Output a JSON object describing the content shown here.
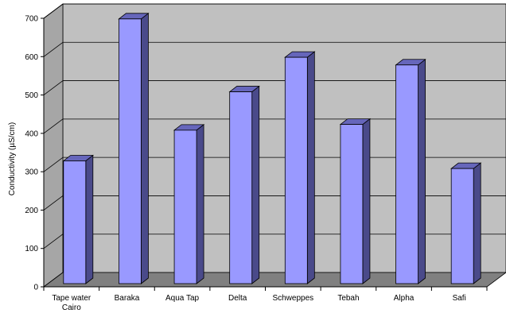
{
  "chart_data": {
    "type": "bar",
    "title": "",
    "xlabel": "",
    "ylabel": "Conductivity (µS/cm)",
    "categories": [
      [
        "Tape water",
        "Cairo"
      ],
      [
        "Baraka"
      ],
      [
        "Aqua Tap"
      ],
      [
        "Delta"
      ],
      [
        "Schweppes"
      ],
      [
        "Tebah"
      ],
      [
        "Alpha"
      ],
      [
        "Safi"
      ]
    ],
    "values": [
      320,
      690,
      400,
      500,
      590,
      415,
      570,
      300
    ],
    "ylim": [
      0,
      700
    ],
    "yticks": [
      0,
      100,
      200,
      300,
      400,
      500,
      600,
      700
    ],
    "grid": true,
    "legend": "none",
    "style": "3d",
    "colors": {
      "bar_front": "#9999ff",
      "bar_side": "#4a4a8a",
      "bar_top": "#6666bb",
      "back_wall": "#c0c0c0",
      "side_wall": "#a6a6a6",
      "floor": "#808080",
      "gridline": "#000000"
    }
  }
}
